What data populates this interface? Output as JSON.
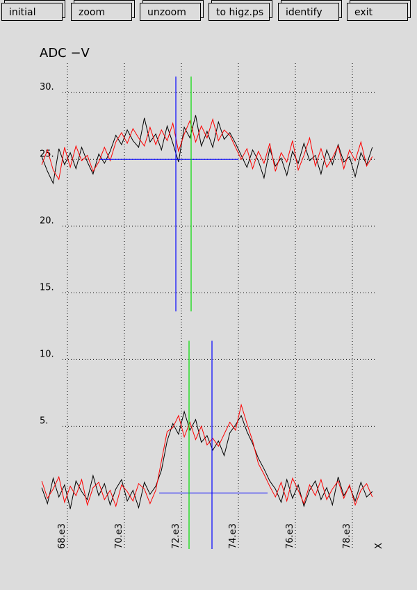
{
  "toolbar": {
    "buttons": [
      "initial",
      "zoom",
      "unzoom",
      "to higz.ps",
      "identify",
      "exit"
    ]
  },
  "chart_data": {
    "type": "line",
    "title": "ADC  −V",
    "x_label": "X",
    "x": [
      67100,
      67300,
      67500,
      67700,
      67900,
      68100,
      68300,
      68500,
      68700,
      68900,
      69100,
      69300,
      69500,
      69700,
      69900,
      70100,
      70300,
      70500,
      70700,
      70900,
      71100,
      71300,
      71500,
      71700,
      71900,
      72100,
      72300,
      72500,
      72700,
      72900,
      73100,
      73300,
      73500,
      73700,
      73900,
      74100,
      74300,
      74500,
      74700,
      74900,
      75100,
      75300,
      75500,
      75700,
      75900,
      76100,
      76300,
      76500,
      76700,
      76900,
      77100,
      77300,
      77500,
      77700,
      77900,
      78100,
      78300,
      78500,
      78700
    ],
    "series": [
      {
        "color": "#000000",
        "values": [
          25.2,
          24.1,
          23.2,
          25.8,
          24.6,
          25.5,
          24.3,
          25.9,
          24.8,
          23.9,
          25.4,
          24.7,
          25.6,
          26.8,
          26.1,
          27.2,
          26.4,
          25.9,
          28.1,
          26.3,
          26.9,
          25.7,
          27.5,
          26.2,
          24.8,
          27.4,
          26.6,
          28.3,
          26.0,
          27.1,
          25.9,
          27.8,
          26.5,
          27.0,
          26.2,
          25.3,
          24.4,
          25.7,
          24.9,
          23.6,
          25.8,
          24.5,
          25.1,
          23.8,
          25.6,
          24.7,
          26.2,
          24.9,
          25.3,
          23.9,
          25.7,
          24.6,
          26.1,
          24.8,
          25.2,
          23.7,
          25.5,
          24.6,
          25.9
        ]
      },
      {
        "color": "#ff0000",
        "values": [
          24.6,
          25.7,
          24.2,
          23.5,
          25.9,
          24.4,
          26.0,
          24.9,
          25.3,
          24.1,
          24.8,
          25.9,
          24.9,
          26.3,
          27.0,
          26.2,
          27.3,
          26.6,
          26.0,
          27.4,
          26.1,
          27.2,
          26.4,
          27.7,
          25.6,
          26.9,
          27.9,
          26.3,
          27.5,
          26.6,
          28.0,
          26.4,
          27.2,
          26.8,
          25.9,
          25.0,
          25.8,
          24.3,
          25.6,
          24.7,
          26.2,
          24.1,
          25.5,
          24.8,
          26.4,
          24.2,
          25.3,
          26.6,
          24.5,
          25.8,
          24.4,
          25.1,
          26.0,
          24.3,
          25.7,
          24.9,
          26.3,
          24.5,
          25.2
        ]
      },
      {
        "color": "#000000",
        "values": [
          0.4,
          -0.8,
          1.1,
          -0.3,
          0.6,
          -1.2,
          0.9,
          0.1,
          -0.5,
          1.3,
          -0.2,
          0.7,
          -0.9,
          0.3,
          1.0,
          -0.6,
          0.2,
          -1.1,
          0.8,
          -0.1,
          0.5,
          1.7,
          3.9,
          5.2,
          4.4,
          6.1,
          4.7,
          5.5,
          3.8,
          4.3,
          3.2,
          3.9,
          2.8,
          4.5,
          5.1,
          5.8,
          4.6,
          3.7,
          2.6,
          1.8,
          0.9,
          0.3,
          -0.7,
          1.0,
          -0.4,
          0.6,
          -1.0,
          0.2,
          0.9,
          -0.5,
          0.4,
          -0.9,
          1.2,
          -0.2,
          0.5,
          -0.6,
          0.8,
          -0.3,
          0.1
        ]
      },
      {
        "color": "#ff0000",
        "values": [
          0.9,
          -0.4,
          0.3,
          1.2,
          -0.7,
          0.5,
          -0.2,
          1.0,
          -0.9,
          0.4,
          0.8,
          -0.5,
          0.2,
          -1.0,
          0.6,
          0.1,
          -0.6,
          0.7,
          0.3,
          -0.8,
          0.2,
          2.4,
          4.6,
          4.9,
          5.8,
          4.2,
          5.3,
          4.0,
          5.0,
          3.6,
          4.1,
          3.5,
          4.4,
          5.3,
          4.7,
          6.6,
          5.2,
          3.9,
          2.2,
          1.4,
          0.5,
          -0.3,
          0.8,
          -0.6,
          1.1,
          0.2,
          -0.8,
          0.6,
          -0.2,
          1.0,
          -0.5,
          0.3,
          0.9,
          -0.4,
          0.6,
          -0.9,
          0.2,
          0.7,
          -0.3
        ]
      }
    ],
    "vlines": [
      {
        "x": 71805,
        "color": "#0000ff",
        "y_range": [
          13.6,
          31.2
        ]
      },
      {
        "x": 72341,
        "color": "#00dd00",
        "y_range": [
          13.6,
          31.2
        ]
      },
      {
        "x": 72268,
        "color": "#00dd00",
        "y_range": [
          -4.2,
          11.4
        ]
      },
      {
        "x": 73073,
        "color": "#0000ff",
        "y_range": [
          -4.2,
          11.4
        ]
      }
    ],
    "hlines": [
      {
        "y": 25,
        "color": "#0000ff",
        "x_range": [
          69146,
          74000
        ]
      },
      {
        "y": 0,
        "color": "#0000ff",
        "x_range": [
          71220,
          75024
        ]
      }
    ],
    "xlim": [
      67024,
      78829
    ],
    "ylim": [
      -4.2,
      32.2
    ],
    "xticks": [
      {
        "value": 68000,
        "label": "68.e3"
      },
      {
        "value": 70000,
        "label": "70.e3"
      },
      {
        "value": 72000,
        "label": "72.e3"
      },
      {
        "value": 74000,
        "label": "74.e3"
      },
      {
        "value": 76000,
        "label": "76.e3"
      },
      {
        "value": 78000,
        "label": "78.e3"
      }
    ],
    "yticks": [
      {
        "value": 5,
        "label": "5."
      },
      {
        "value": 10,
        "label": "10."
      },
      {
        "value": 15,
        "label": "15."
      },
      {
        "value": 20,
        "label": "20."
      },
      {
        "value": 25,
        "label": "25."
      },
      {
        "value": 30,
        "label": "30."
      }
    ],
    "grid": true
  }
}
